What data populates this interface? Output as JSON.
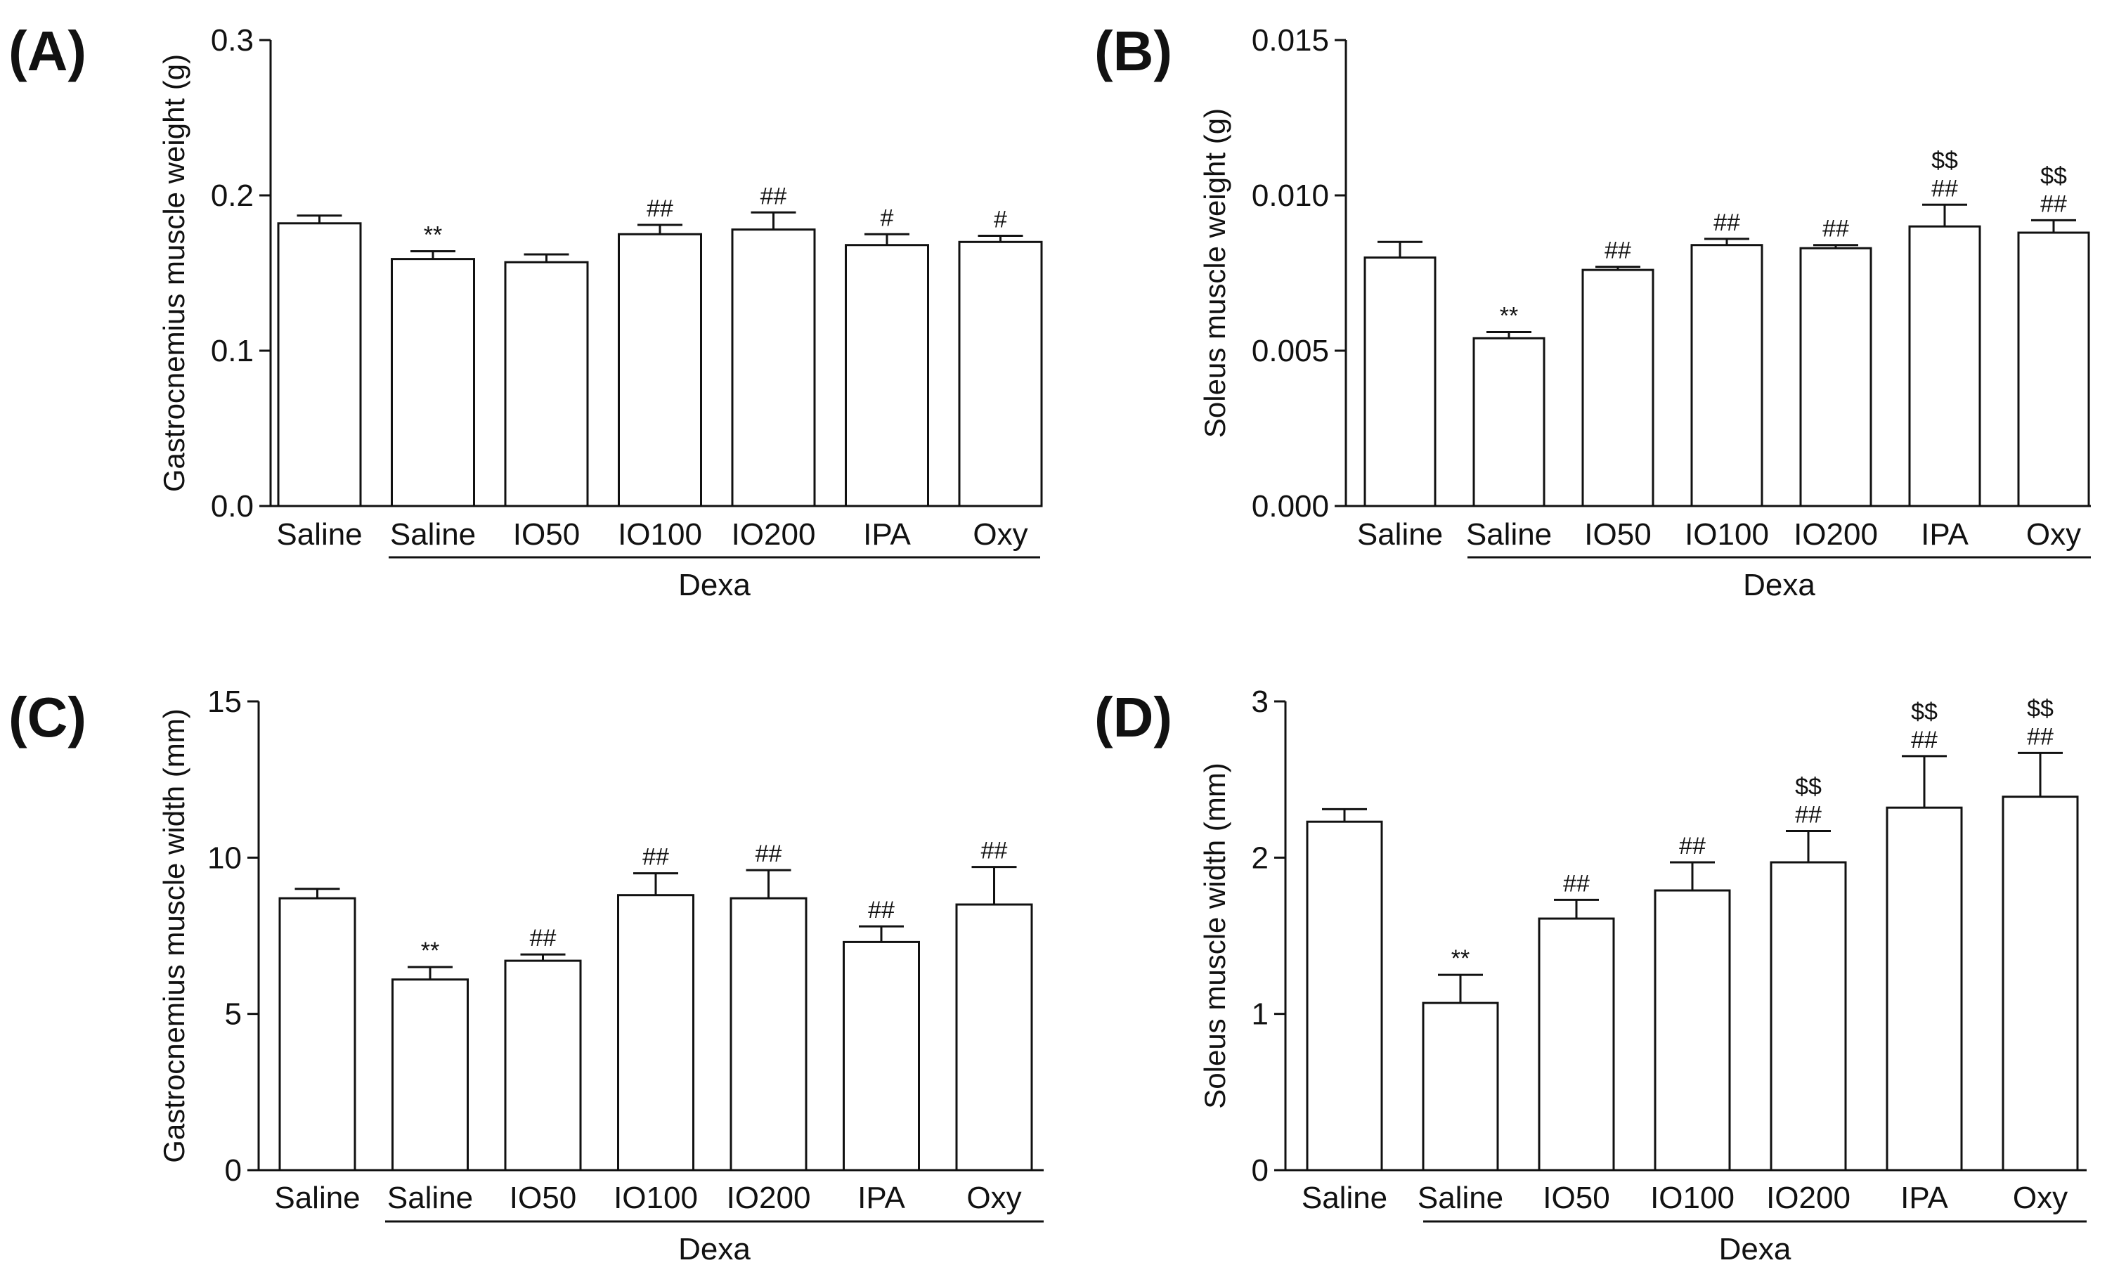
{
  "figure": {
    "categories": [
      "Saline",
      "Saline",
      "IO50",
      "IO100",
      "IO200",
      "IPA",
      "Oxy"
    ],
    "group_label": "Dexa",
    "colors": {
      "bar_fill": "#ffffff",
      "stroke": "#111111",
      "text": "#111111"
    }
  },
  "chart_data": [
    {
      "panel": "(A)",
      "type": "bar",
      "title": "",
      "xlabel": "",
      "ylabel": "Gastrocnemius muscle weight (g)",
      "categories": [
        "Saline",
        "Saline",
        "IO50",
        "IO100",
        "IO200",
        "IPA",
        "Oxy"
      ],
      "group_label": "Dexa",
      "ylim": [
        0,
        0.3
      ],
      "yticks": [
        0.0,
        0.1,
        0.2,
        0.3
      ],
      "ytick_labels": [
        "0.0",
        "0.1",
        "0.2",
        "0.3"
      ],
      "values": [
        0.182,
        0.159,
        0.157,
        0.175,
        0.178,
        0.168,
        0.17
      ],
      "errors": [
        0.005,
        0.005,
        0.005,
        0.006,
        0.011,
        0.007,
        0.004
      ],
      "annotations": [
        [],
        [
          "**"
        ],
        [],
        [
          "##"
        ],
        [
          "##"
        ],
        [
          "#"
        ],
        [
          "#"
        ]
      ]
    },
    {
      "panel": "(B)",
      "type": "bar",
      "title": "",
      "xlabel": "",
      "ylabel": "Soleus muscle weight (g)",
      "categories": [
        "Saline",
        "Saline",
        "IO50",
        "IO100",
        "IO200",
        "IPA",
        "Oxy"
      ],
      "group_label": "Dexa",
      "ylim": [
        0,
        0.015
      ],
      "yticks": [
        0.0,
        0.005,
        0.01,
        0.015
      ],
      "ytick_labels": [
        "0.000",
        "0.005",
        "0.010",
        "0.015"
      ],
      "values": [
        0.008,
        0.0054,
        0.0076,
        0.0084,
        0.0083,
        0.009,
        0.0088
      ],
      "errors": [
        0.0005,
        0.0002,
        0.0001,
        0.0002,
        0.0001,
        0.0007,
        0.0004
      ],
      "annotations": [
        [],
        [
          "**"
        ],
        [
          "##"
        ],
        [
          "##"
        ],
        [
          "##"
        ],
        [
          "$$",
          "##"
        ],
        [
          "$$",
          "##"
        ]
      ]
    },
    {
      "panel": "(C)",
      "type": "bar",
      "title": "",
      "xlabel": "",
      "ylabel": "Gastrocnemius muscle width (mm)",
      "categories": [
        "Saline",
        "Saline",
        "IO50",
        "IO100",
        "IO200",
        "IPA",
        "Oxy"
      ],
      "group_label": "Dexa",
      "ylim": [
        0,
        15
      ],
      "yticks": [
        0,
        5,
        10,
        15
      ],
      "ytick_labels": [
        "0",
        "5",
        "10",
        "15"
      ],
      "values": [
        8.7,
        6.1,
        6.7,
        8.8,
        8.7,
        7.3,
        8.5
      ],
      "errors": [
        0.3,
        0.4,
        0.2,
        0.7,
        0.9,
        0.5,
        1.2
      ],
      "annotations": [
        [],
        [
          "**"
        ],
        [
          "##"
        ],
        [
          "##"
        ],
        [
          "##"
        ],
        [
          "##"
        ],
        [
          "##"
        ]
      ]
    },
    {
      "panel": "(D)",
      "type": "bar",
      "title": "",
      "xlabel": "",
      "ylabel": "Soleus muscle width (mm)",
      "categories": [
        "Saline",
        "Saline",
        "IO50",
        "IO100",
        "IO200",
        "IPA",
        "Oxy"
      ],
      "group_label": "Dexa",
      "ylim": [
        0,
        3
      ],
      "yticks": [
        0,
        1,
        2,
        3
      ],
      "ytick_labels": [
        "0",
        "1",
        "2",
        "3"
      ],
      "values": [
        2.23,
        1.07,
        1.61,
        1.79,
        1.97,
        2.32,
        2.39
      ],
      "errors": [
        0.08,
        0.18,
        0.12,
        0.18,
        0.2,
        0.33,
        0.28
      ],
      "annotations": [
        [],
        [
          "**"
        ],
        [
          "##"
        ],
        [
          "##"
        ],
        [
          "$$",
          "##"
        ],
        [
          "$$",
          "##"
        ],
        [
          "$$",
          "##"
        ]
      ]
    }
  ]
}
